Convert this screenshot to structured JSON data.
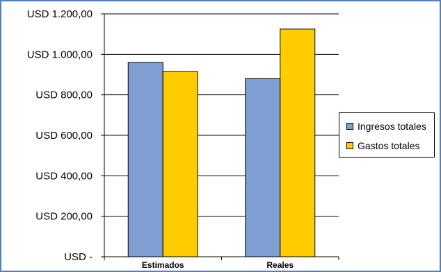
{
  "chart_data": {
    "type": "bar",
    "categories": [
      "Estimados",
      "Reales"
    ],
    "series": [
      {
        "name": "Ingresos totales",
        "color": "#7f9ed2",
        "values": [
          960,
          880
        ]
      },
      {
        "name": "Gastos totales",
        "color": "#ffcc00",
        "values": [
          915,
          1125
        ]
      }
    ],
    "y_ticks": [
      {
        "value": 0,
        "label": "USD -"
      },
      {
        "value": 200,
        "label": "USD 200,00"
      },
      {
        "value": 400,
        "label": "USD 400,00"
      },
      {
        "value": 600,
        "label": "USD 600,00"
      },
      {
        "value": 800,
        "label": "USD 800,00"
      },
      {
        "value": 1000,
        "label": "USD 1.000,00"
      },
      {
        "value": 1200,
        "label": "USD 1.200,00"
      }
    ],
    "ylim": [
      0,
      1200
    ],
    "grid": true,
    "legend_position": "right"
  }
}
